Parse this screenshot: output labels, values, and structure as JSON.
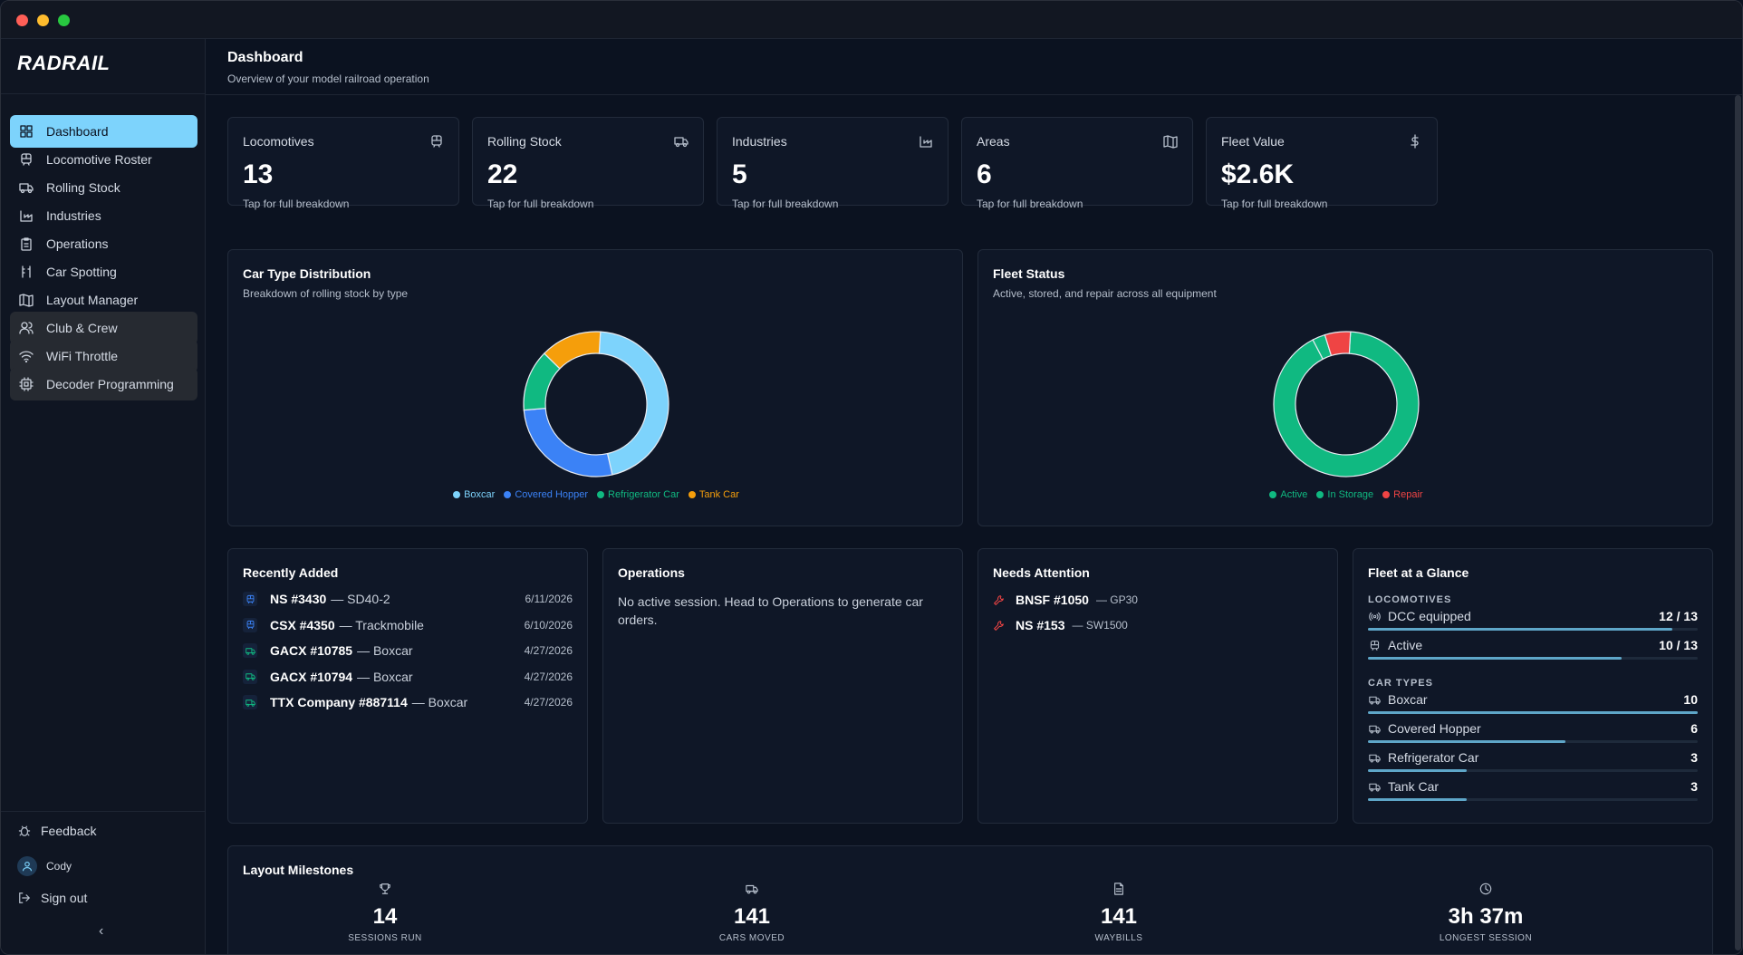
{
  "window": {
    "traffic_lights": [
      "#ff5f57",
      "#febc2e",
      "#28c840"
    ]
  },
  "sidebar": {
    "brand": "RADRAIL",
    "items": [
      {
        "label": "Dashboard",
        "icon": "dashboard-icon",
        "active": true
      },
      {
        "label": "Locomotive Roster",
        "icon": "train-icon"
      },
      {
        "label": "Rolling Stock",
        "icon": "truck-icon"
      },
      {
        "label": "Industries",
        "icon": "factory-icon"
      },
      {
        "label": "Operations",
        "icon": "clipboard-icon"
      },
      {
        "label": "Car Spotting",
        "icon": "track-icon"
      },
      {
        "label": "Layout Manager",
        "icon": "map-icon"
      },
      {
        "label": "Club & Crew",
        "icon": "users-icon"
      },
      {
        "label": "WiFi Throttle",
        "icon": "wifi-icon"
      },
      {
        "label": "Decoder Programming",
        "icon": "chip-icon"
      }
    ],
    "feedback": "Feedback",
    "user": "Cody",
    "sign_out": "Sign out",
    "collapse": "‹"
  },
  "header": {
    "title": "Dashboard",
    "subtitle": "Overview of your model railroad operation"
  },
  "stats": [
    {
      "label": "Locomotives",
      "value": "13",
      "hint": "Tap for full breakdown",
      "icon": "train-icon"
    },
    {
      "label": "Rolling Stock",
      "value": "22",
      "hint": "Tap for full breakdown",
      "icon": "truck-icon"
    },
    {
      "label": "Industries",
      "value": "5",
      "hint": "Tap for full breakdown",
      "icon": "factory-icon"
    },
    {
      "label": "Areas",
      "value": "6",
      "hint": "Tap for full breakdown",
      "icon": "map-icon"
    },
    {
      "label": "Fleet Value",
      "value": "$2.6K",
      "hint": "Tap for full breakdown",
      "icon": "dollar-icon"
    }
  ],
  "car_type": {
    "title": "Car Type Distribution",
    "subtitle": "Breakdown of rolling stock by type"
  },
  "fleet_status": {
    "title": "Fleet Status",
    "subtitle": "Active, stored, and repair across all equipment"
  },
  "chart_data": [
    {
      "type": "pie",
      "title": "Car Type Distribution",
      "categories": [
        "Boxcar",
        "Covered Hopper",
        "Refrigerator Car",
        "Tank Car"
      ],
      "values": [
        10,
        6,
        3,
        3
      ],
      "colors": [
        "#7dd3fc",
        "#3b82f6",
        "#10b981",
        "#f59e0b"
      ],
      "donut": true,
      "legend": "bottom"
    },
    {
      "type": "pie",
      "title": "Fleet Status",
      "categories": [
        "Active",
        "In Storage",
        "Repair"
      ],
      "values": [
        32,
        1,
        2
      ],
      "colors": [
        "#10b981",
        "#10b981",
        "#ef4444"
      ],
      "donut": true,
      "legend": "bottom"
    }
  ],
  "recent": {
    "title": "Recently Added",
    "items": [
      {
        "name": "NS #3430",
        "desc": "— SD40-2",
        "date": "6/11/2026",
        "icon": "train-icon",
        "color": "#3b82f6"
      },
      {
        "name": "CSX #4350",
        "desc": "— Trackmobile",
        "date": "6/10/2026",
        "icon": "train-icon",
        "color": "#3b82f6"
      },
      {
        "name": "GACX #10785",
        "desc": "— Boxcar",
        "date": "4/27/2026",
        "icon": "truck-icon",
        "color": "#10b981"
      },
      {
        "name": "GACX #10794",
        "desc": "— Boxcar",
        "date": "4/27/2026",
        "icon": "truck-icon",
        "color": "#10b981"
      },
      {
        "name": "TTX Company #887114",
        "desc": "— Boxcar",
        "date": "4/27/2026",
        "icon": "truck-icon",
        "color": "#10b981"
      }
    ]
  },
  "operations": {
    "title": "Operations",
    "text": "No active session. Head to Operations to generate car orders."
  },
  "attention": {
    "title": "Needs Attention",
    "items": [
      {
        "name": "BNSF #1050",
        "desc": "— GP30",
        "icon": "wrench-icon"
      },
      {
        "name": "NS #153",
        "desc": "— SW1500",
        "icon": "wrench-icon"
      }
    ]
  },
  "fleet": {
    "title": "Fleet at a Glance",
    "loco_section": "LOCOMOTIVES",
    "car_section": "CAR TYPES",
    "loco_rows": [
      {
        "label": "DCC equipped",
        "value": "12 / 13",
        "fraction": 0.923,
        "icon": "signal-icon"
      },
      {
        "label": "Active",
        "value": "10 / 13",
        "fraction": 0.769,
        "icon": "train-icon"
      }
    ],
    "car_rows": [
      {
        "label": "Boxcar",
        "value": "10",
        "fraction": 1.0,
        "icon": "truck-icon"
      },
      {
        "label": "Covered Hopper",
        "value": "6",
        "fraction": 0.6,
        "icon": "truck-icon"
      },
      {
        "label": "Refrigerator Car",
        "value": "3",
        "fraction": 0.3,
        "icon": "truck-icon"
      },
      {
        "label": "Tank Car",
        "value": "3",
        "fraction": 0.3,
        "icon": "truck-icon"
      }
    ]
  },
  "milestones": {
    "title": "Layout Milestones",
    "items": [
      {
        "value": "14",
        "label": "SESSIONS RUN",
        "icon": "trophy-icon"
      },
      {
        "value": "141",
        "label": "CARS MOVED",
        "icon": "truck-icon"
      },
      {
        "value": "141",
        "label": "WAYBILLS",
        "icon": "document-icon"
      },
      {
        "value": "3h 37m",
        "label": "LONGEST SESSION",
        "icon": "clock-icon"
      }
    ]
  }
}
